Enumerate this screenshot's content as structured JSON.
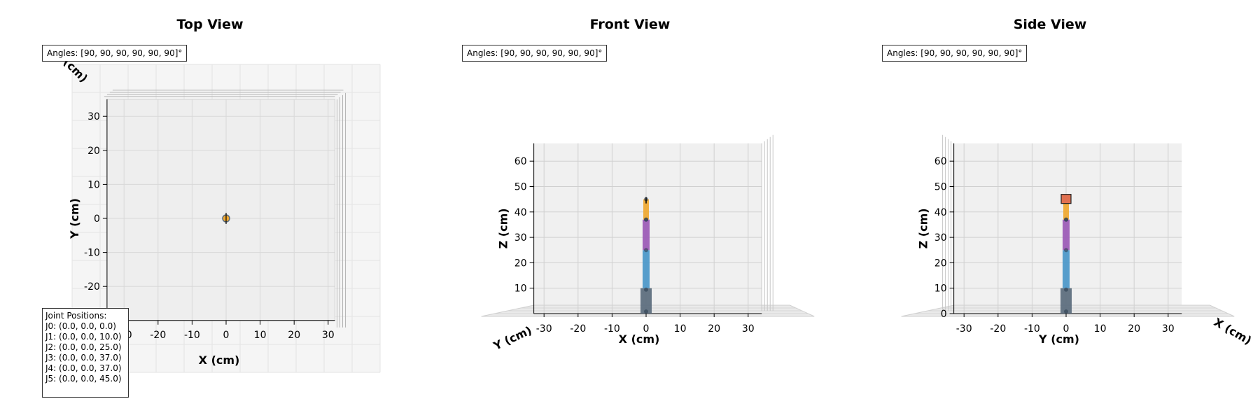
{
  "angles_label": "Angles: [90, 90, 90, 90, 90, 90]°",
  "joints": {
    "heading": "Joint Positions:",
    "lines": [
      "J0: (0.0, 0.0, 0.0)",
      "J1: (0.0, 0.0, 10.0)",
      "J2: (0.0, 0.0, 25.0)",
      "J3: (0.0, 0.0, 37.0)",
      "J4: (0.0, 0.0, 37.0)",
      "J5: (0.0, 0.0, 45.0)"
    ]
  },
  "colors": {
    "base": "#5a6b7c",
    "link1": "#4a97c9",
    "link2": "#9b59b6",
    "link3": "#f0a830",
    "end_effector": "#e07050",
    "joint_dot": "#2c3e50"
  },
  "chart_data": [
    {
      "type": "scatter",
      "title": "Top View",
      "xlabel": "X (cm)",
      "ylabel": "Y (cm)",
      "zlabel": "Z (cm)",
      "xticks": [
        -30,
        -20,
        -10,
        0,
        10,
        20,
        30
      ],
      "yticks": [
        -20,
        -10,
        0,
        10,
        20,
        30
      ],
      "xlim": [
        -35,
        32
      ],
      "ylim": [
        -30,
        35
      ],
      "grid": true,
      "points": [
        {
          "x": 0,
          "y": 0
        }
      ]
    },
    {
      "type": "bar",
      "title": "Front View",
      "xlabel": "X (cm)",
      "ylabel": "Y (cm)",
      "zlabel": "Z (cm)",
      "xticks": [
        -30,
        -20,
        -10,
        0,
        10,
        20,
        30
      ],
      "zticks": [
        0,
        10,
        20,
        30,
        40,
        50,
        60
      ],
      "xlim": [
        -33,
        34
      ],
      "zlim": [
        0,
        67
      ],
      "grid": true,
      "joint_z": [
        0,
        10,
        25,
        37,
        37,
        45
      ]
    },
    {
      "type": "bar",
      "title": "Side View",
      "xlabel": "Y (cm)",
      "ylabel": "X (cm)",
      "zlabel": "Z (cm)",
      "xticks": [
        -30,
        -20,
        -10,
        0,
        10,
        20,
        30
      ],
      "zticks": [
        0,
        10,
        20,
        30,
        40,
        50,
        60
      ],
      "xlim": [
        -33,
        34
      ],
      "zlim": [
        0,
        67
      ],
      "grid": true,
      "joint_z": [
        0,
        10,
        25,
        37,
        37,
        45
      ]
    }
  ]
}
